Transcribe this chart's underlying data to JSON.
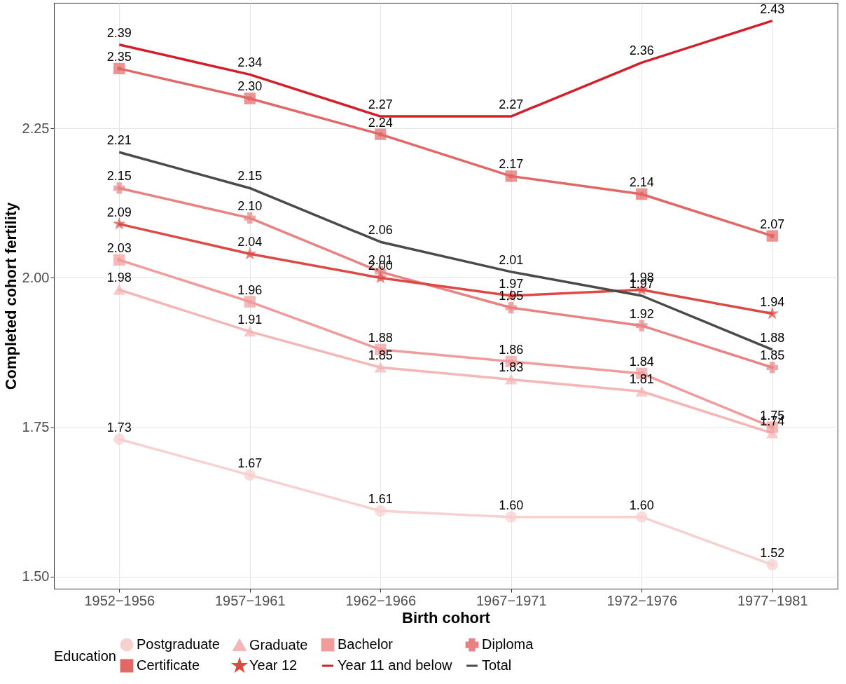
{
  "chart_data": {
    "type": "line",
    "xlabel": "Birth cohort",
    "ylabel": "Completed cohort fertility",
    "legend_title": "Education",
    "categories": [
      "1952−1956",
      "1957−1961",
      "1962−1966",
      "1967−1971",
      "1972−1976",
      "1977−1981"
    ],
    "series": [
      {
        "name": "Postgraduate",
        "color": "#f7d0d0",
        "marker": "circle",
        "values": [
          1.73,
          1.67,
          1.61,
          1.6,
          1.6,
          1.52
        ],
        "value_labels": [
          "1.73",
          "1.67",
          "1.61",
          "1.60",
          "1.60",
          "1.52"
        ]
      },
      {
        "name": "Graduate",
        "color": "#f4b6b6",
        "marker": "triangle",
        "values": [
          1.98,
          1.91,
          1.85,
          1.83,
          1.81,
          1.74
        ],
        "value_labels": [
          "1.98",
          "1.91",
          "1.85",
          "1.83",
          "1.81",
          "1.74"
        ]
      },
      {
        "name": "Bachelor",
        "color": "#f09c9c",
        "marker": "square",
        "values": [
          2.03,
          1.96,
          1.88,
          1.86,
          1.84,
          1.75
        ],
        "value_labels": [
          "2.03",
          "1.96",
          "1.88",
          "1.86",
          "1.84",
          "1.75"
        ]
      },
      {
        "name": "Diploma",
        "color": "#e98282",
        "marker": "cross",
        "values": [
          2.15,
          2.1,
          2.01,
          1.95,
          1.92,
          1.85
        ],
        "value_labels": [
          "2.15",
          "2.10",
          "2.01",
          "1.95",
          "1.92",
          "1.85"
        ]
      },
      {
        "name": "Certificate",
        "color": "#e26868",
        "marker": "square",
        "values": [
          2.35,
          2.3,
          2.24,
          2.17,
          2.14,
          2.07
        ],
        "value_labels": [
          "2.35",
          "2.30",
          "2.24",
          "2.17",
          "2.14",
          "2.07"
        ]
      },
      {
        "name": "Year 12",
        "color": "#db4a44",
        "marker": "star",
        "values": [
          2.09,
          2.04,
          2.0,
          1.97,
          1.98,
          1.94
        ],
        "value_labels": [
          "2.09",
          "2.04",
          "2.00",
          "1.97",
          "1.98",
          "1.94"
        ]
      },
      {
        "name": "Year 11 and below",
        "color": "#d31f2a",
        "marker": "none",
        "values": [
          2.39,
          2.34,
          2.27,
          2.27,
          2.36,
          2.43
        ],
        "value_labels": [
          "2.39",
          "2.34",
          "2.27",
          "2.27",
          "2.36",
          "2.43"
        ]
      },
      {
        "name": "Total",
        "color": "#4a4a4a",
        "marker": "none",
        "values": [
          2.21,
          2.15,
          2.06,
          2.01,
          1.97,
          1.88
        ],
        "value_labels": [
          "2.21",
          "2.15",
          "2.06",
          "2.01",
          "1.97",
          "1.88"
        ]
      }
    ],
    "ylim": [
      1.48,
      2.46
    ],
    "yticks": [
      {
        "value": 1.5,
        "label": "1.50"
      },
      {
        "value": 1.75,
        "label": "1.75"
      },
      {
        "value": 2.0,
        "label": "2.00"
      },
      {
        "value": 2.25,
        "label": "2.25"
      }
    ],
    "grid": true,
    "legend": "bottom",
    "line_style": "solid"
  }
}
